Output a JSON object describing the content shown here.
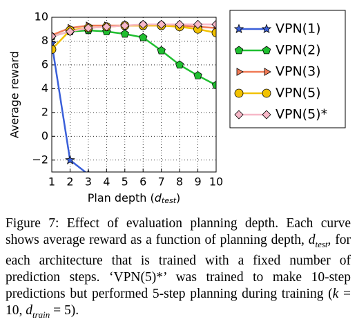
{
  "chart_data": {
    "type": "line",
    "ylabel": "Average reward",
    "xlabel": {
      "text": "Plan depth (",
      "var": "d",
      "sub": "test",
      "end": ")"
    },
    "x": [
      1,
      2,
      3,
      4,
      5,
      6,
      7,
      8,
      9,
      10
    ],
    "xlim": [
      1,
      10
    ],
    "xticks": [
      1,
      2,
      3,
      4,
      5,
      6,
      7,
      8,
      9,
      10
    ],
    "ylim": [
      -3,
      10
    ],
    "yticks": [
      {
        "value": -2,
        "label": "−2"
      },
      0,
      2,
      4,
      6,
      8,
      10
    ],
    "grid": true,
    "legend": "outside-right",
    "series": [
      {
        "name": "VPN(1)",
        "color": "#3a5fd9",
        "marker": "star",
        "values": [
          7.8,
          -2,
          -3.2,
          null,
          null,
          null,
          null,
          null,
          null,
          null
        ]
      },
      {
        "name": "VPN(2)",
        "color": "#1fbf30",
        "marker": "pentagon",
        "values": [
          8.4,
          8.8,
          8.9,
          8.8,
          8.6,
          8.3,
          7.2,
          6.0,
          5.1,
          4.3
        ]
      },
      {
        "name": "VPN(3)",
        "color": "#f07a55",
        "marker": "triangle-right",
        "values": [
          8.5,
          9.1,
          9.3,
          9.3,
          9.3,
          9.3,
          9.3,
          9.3,
          9.2,
          9.1
        ]
      },
      {
        "name": "VPN(5)",
        "color": "#f2c200",
        "marker": "circle",
        "values": [
          7.3,
          8.9,
          9.1,
          9.2,
          9.3,
          9.3,
          9.3,
          9.2,
          9.0,
          8.7
        ]
      },
      {
        "name": "VPN(5)*",
        "color": "#f7b8c8",
        "marker": "diamond",
        "values": [
          8.4,
          8.8,
          9.1,
          9.2,
          9.3,
          9.4,
          9.4,
          9.4,
          9.4,
          9.4
        ]
      }
    ]
  },
  "caption": [
    "Figure 7: Effect of evaluation planning depth. Each curve shows average reward as a function of planning depth, ",
    {
      "var": "d",
      "sub": "test"
    },
    ", for each architecture that is trained with a fixed number of prediction steps. ‘VPN(5)*’ was trained to make 10-step predictions but performed 5-step planning during training (",
    {
      "var": "k"
    },
    " = 10, ",
    {
      "var": "d",
      "sub": "train"
    },
    " = 5)."
  ]
}
